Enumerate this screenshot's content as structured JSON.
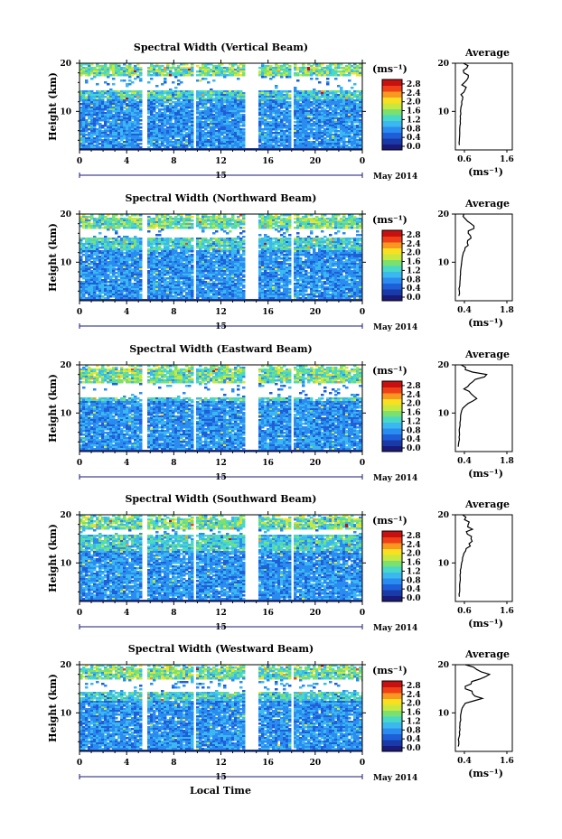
{
  "figure": {
    "xlabel": "Local Time",
    "date_marker": "15",
    "date_text": "May 2014",
    "x_ticks": [
      "0",
      "4",
      "8",
      "12",
      "16",
      "20",
      "0"
    ],
    "y_ticks": [
      "20",
      "10"
    ],
    "ylabel": "Height (km)",
    "colorbar_unit": "(ms⁻¹)",
    "colorbar_ticks": [
      "2.8",
      "2.4",
      "2.0",
      "1.6",
      "1.2",
      "0.8",
      "0.4",
      "0.0"
    ],
    "profile_title": "Average",
    "profile_xlabel": "(ms⁻¹)",
    "colors": {
      "colormap": [
        "#1a1a7a",
        "#1a3aa8",
        "#1e5fd8",
        "#2a8cf0",
        "#3cb8f0",
        "#48d8c8",
        "#7ae070",
        "#c8e840",
        "#f8e020",
        "#f89820",
        "#f04018",
        "#c81010"
      ],
      "background": "#ffffff",
      "lines": "#000000"
    }
  },
  "chart_data": [
    {
      "type": "heatmap",
      "title": "Spectral Width (Vertical Beam)",
      "xlabel": "Local Time",
      "ylabel": "Height (km)",
      "xlim": [
        0,
        24
      ],
      "ylim": [
        2,
        20
      ],
      "colorbar_range": [
        0,
        3.0
      ],
      "data_gaps_hours": [
        [
          5.2,
          5.6
        ],
        [
          9.5,
          9.8
        ],
        [
          14.0,
          15.0
        ],
        [
          17.9,
          18.1
        ]
      ],
      "echo_gap_heights_km": [
        [
          14.5,
          17.5
        ]
      ],
      "profile": {
        "title": "Average",
        "xlim": [
          0,
          2.0
        ],
        "x_ticks": [
          "0.6",
          "1.6"
        ],
        "height": [
          3,
          4,
          5,
          6,
          7,
          8,
          9,
          10,
          11,
          12,
          13,
          14,
          15,
          16,
          17,
          18,
          19,
          20
        ],
        "width": [
          0.14,
          0.14,
          0.15,
          0.15,
          0.16,
          0.17,
          0.17,
          0.18,
          0.2,
          0.22,
          0.26,
          0.3,
          0.38,
          0.32,
          0.45,
          0.3,
          0.4,
          0.28
        ]
      }
    },
    {
      "type": "heatmap",
      "title": "Spectral Width (Northward Beam)",
      "xlabel": "Local Time",
      "ylabel": "Height (km)",
      "xlim": [
        0,
        24
      ],
      "ylim": [
        2,
        20
      ],
      "colorbar_range": [
        0,
        3.0
      ],
      "data_gaps_hours": [
        [
          5.2,
          5.6
        ],
        [
          9.5,
          9.8
        ],
        [
          14.0,
          15.0
        ],
        [
          17.9,
          18.1
        ]
      ],
      "echo_gap_heights_km": [
        [
          15.5,
          17.0
        ]
      ],
      "profile": {
        "title": "Average",
        "xlim": [
          0,
          2.0
        ],
        "x_ticks": [
          "0.4",
          "1.8"
        ],
        "height": [
          3,
          4,
          5,
          6,
          7,
          8,
          9,
          10,
          11,
          12,
          13,
          14,
          15,
          16,
          17,
          18,
          19,
          20
        ],
        "width": [
          0.12,
          0.14,
          0.15,
          0.16,
          0.17,
          0.18,
          0.2,
          0.22,
          0.24,
          0.28,
          0.34,
          0.42,
          0.55,
          0.45,
          0.65,
          0.55,
          0.35,
          0.3
        ]
      }
    },
    {
      "type": "heatmap",
      "title": "Spectral Width (Eastward Beam)",
      "xlabel": "Local Time",
      "ylabel": "Height (km)",
      "xlim": [
        0,
        24
      ],
      "ylim": [
        2,
        20
      ],
      "colorbar_range": [
        0,
        3.0
      ],
      "data_gaps_hours": [
        [
          5.2,
          5.6
        ],
        [
          9.5,
          9.8
        ],
        [
          14.0,
          15.0
        ],
        [
          17.9,
          18.1
        ]
      ],
      "echo_gap_heights_km": [
        [
          13.5,
          16.5
        ]
      ],
      "profile": {
        "title": "Average",
        "xlim": [
          0,
          2.0
        ],
        "x_ticks": [
          "0.4",
          "1.8"
        ],
        "height": [
          3,
          4,
          5,
          6,
          7,
          8,
          9,
          10,
          11,
          12,
          13,
          14,
          15,
          16,
          17,
          18,
          19,
          20
        ],
        "width": [
          0.1,
          0.12,
          0.13,
          0.14,
          0.15,
          0.16,
          0.18,
          0.2,
          0.26,
          0.45,
          0.75,
          0.55,
          0.3,
          0.5,
          0.7,
          1.1,
          0.35,
          0.2
        ]
      }
    },
    {
      "type": "heatmap",
      "title": "Spectral Width (Southward Beam)",
      "xlabel": "Local Time",
      "ylabel": "Height (km)",
      "xlim": [
        0,
        24
      ],
      "ylim": [
        2,
        20
      ],
      "colorbar_range": [
        0,
        3.0
      ],
      "data_gaps_hours": [
        [
          5.2,
          5.6
        ],
        [
          9.5,
          9.8
        ],
        [
          14.0,
          15.0
        ],
        [
          17.9,
          18.1
        ]
      ],
      "echo_gap_heights_km": [
        [
          16.0,
          17.0
        ]
      ],
      "profile": {
        "title": "Average",
        "xlim": [
          0,
          2.0
        ],
        "x_ticks": [
          "0.6",
          "1.6"
        ],
        "height": [
          3,
          4,
          5,
          6,
          7,
          8,
          9,
          10,
          11,
          12,
          13,
          14,
          15,
          16,
          17,
          18,
          19,
          20
        ],
        "width": [
          0.14,
          0.15,
          0.15,
          0.16,
          0.17,
          0.18,
          0.2,
          0.22,
          0.25,
          0.3,
          0.38,
          0.48,
          0.55,
          0.42,
          0.6,
          0.45,
          0.32,
          0.25
        ]
      }
    },
    {
      "type": "heatmap",
      "title": "Spectral Width (Westward Beam)",
      "xlabel": "Local Time",
      "ylabel": "Height (km)",
      "xlim": [
        0,
        24
      ],
      "ylim": [
        2,
        20
      ],
      "colorbar_range": [
        0,
        3.0
      ],
      "data_gaps_hours": [
        [
          5.2,
          5.6
        ],
        [
          9.5,
          9.8
        ],
        [
          14.0,
          15.0
        ],
        [
          17.9,
          18.1
        ]
      ],
      "echo_gap_heights_km": [
        [
          14.5,
          17.0
        ]
      ],
      "profile": {
        "title": "Average",
        "xlim": [
          0,
          2.0
        ],
        "x_ticks": [
          "0.4",
          "1.6"
        ],
        "height": [
          3,
          4,
          5,
          6,
          7,
          8,
          9,
          10,
          11,
          12,
          13,
          14,
          15,
          16,
          17,
          18,
          19,
          20
        ],
        "width": [
          0.1,
          0.12,
          0.13,
          0.14,
          0.15,
          0.16,
          0.18,
          0.2,
          0.24,
          0.35,
          0.95,
          0.6,
          0.35,
          0.55,
          0.85,
          1.2,
          0.75,
          0.35
        ]
      }
    }
  ]
}
